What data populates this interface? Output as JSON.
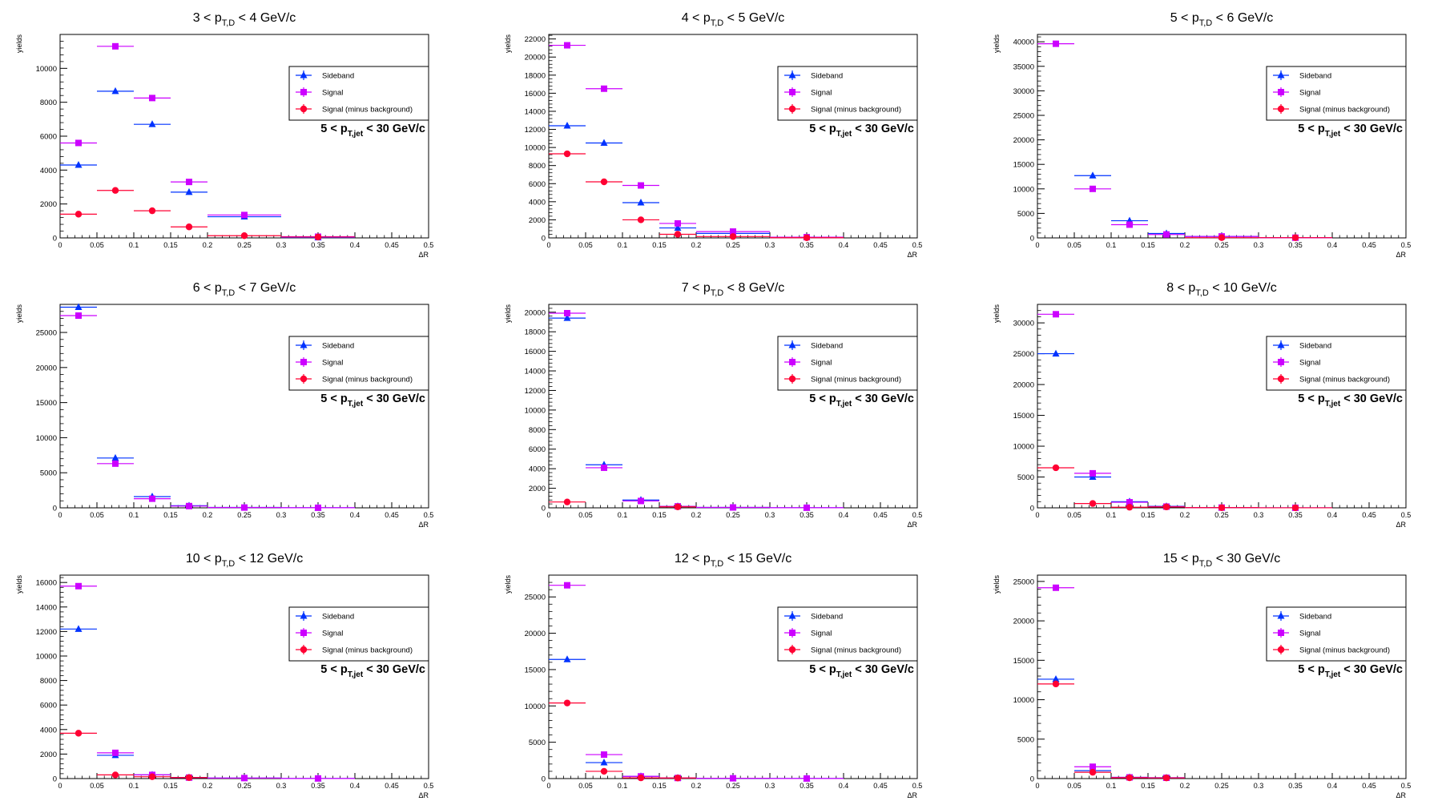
{
  "x_axis_label": "ΔR",
  "y_axis_label": "yields",
  "legend": {
    "sideband": "Sideband",
    "signal": "Signal",
    "signal_minus_bkg": "Signal (minus background)"
  },
  "jet_label_main": "5 < p",
  "jet_label_sub": "T,jet",
  "jet_label_tail": " < 30 GeV/c",
  "colors": {
    "sideband": "#0033ff",
    "signal": "#cc00ff",
    "signal_minus_bkg": "#ff0033"
  },
  "chart_data": [
    {
      "type": "scatter",
      "title_main": "3 < p",
      "title_sub": "T,D",
      "title_tail": " < 4 GeV/c",
      "xlim": [
        0,
        0.5
      ],
      "ylim": [
        0,
        12000
      ],
      "yticks": [
        0,
        2000,
        4000,
        6000,
        8000,
        10000
      ],
      "ytick_labels": [
        "0",
        "2000",
        "4000",
        "6000",
        "8000",
        "10000"
      ],
      "bins": [
        [
          0,
          0.05
        ],
        [
          0.05,
          0.1
        ],
        [
          0.1,
          0.15
        ],
        [
          0.15,
          0.2
        ],
        [
          0.2,
          0.3
        ],
        [
          0.3,
          0.4
        ]
      ],
      "series": [
        {
          "key": "sideband",
          "values": [
            4300,
            8650,
            6700,
            2700,
            1250,
            20
          ]
        },
        {
          "key": "signal",
          "values": [
            5600,
            11300,
            8250,
            3300,
            1350,
            70
          ]
        },
        {
          "key": "signal_minus_bkg",
          "values": [
            1400,
            2800,
            1600,
            650,
            130,
            50
          ]
        }
      ]
    },
    {
      "type": "scatter",
      "title_main": "4 < p",
      "title_sub": "T,D",
      "title_tail": " < 5 GeV/c",
      "xlim": [
        0,
        0.5
      ],
      "ylim": [
        0,
        22500
      ],
      "yticks": [
        0,
        2000,
        4000,
        6000,
        8000,
        10000,
        12000,
        14000,
        16000,
        18000,
        20000,
        22000
      ],
      "ytick_labels": [
        "0",
        "2000",
        "4000",
        "6000",
        "8000",
        "10000",
        "12000",
        "14000",
        "16000",
        "18000",
        "20000",
        "22000"
      ],
      "bins": [
        [
          0,
          0.05
        ],
        [
          0.05,
          0.1
        ],
        [
          0.1,
          0.15
        ],
        [
          0.15,
          0.2
        ],
        [
          0.2,
          0.3
        ],
        [
          0.3,
          0.4
        ]
      ],
      "series": [
        {
          "key": "sideband",
          "values": [
            12400,
            10500,
            3900,
            1100,
            500,
            60
          ]
        },
        {
          "key": "signal",
          "values": [
            21300,
            16500,
            5800,
            1600,
            700,
            80
          ]
        },
        {
          "key": "signal_minus_bkg",
          "values": [
            9300,
            6200,
            2000,
            400,
            150,
            20
          ]
        }
      ]
    },
    {
      "type": "scatter",
      "title_main": "5 < p",
      "title_sub": "T,D",
      "title_tail": " < 6 GeV/c",
      "xlim": [
        0,
        0.5
      ],
      "ylim": [
        0,
        41500
      ],
      "yticks": [
        0,
        5000,
        10000,
        15000,
        20000,
        25000,
        30000,
        35000,
        40000
      ],
      "ytick_labels": [
        "0",
        "5000",
        "10000",
        "15000",
        "20000",
        "25000",
        "30000",
        "35000",
        "40000"
      ],
      "bins": [
        [
          0,
          0.05
        ],
        [
          0.05,
          0.1
        ],
        [
          0.1,
          0.15
        ],
        [
          0.15,
          0.2
        ],
        [
          0.2,
          0.3
        ],
        [
          0.3,
          0.4
        ]
      ],
      "series": [
        {
          "key": "sideband",
          "values": [
            null,
            12700,
            3500,
            900,
            300,
            40
          ]
        },
        {
          "key": "signal",
          "values": [
            39600,
            10000,
            2700,
            700,
            300,
            40
          ]
        },
        {
          "key": "signal_minus_bkg",
          "values": [
            null,
            null,
            null,
            null,
            50,
            50
          ]
        }
      ]
    },
    {
      "type": "scatter",
      "title_main": "6 < p",
      "title_sub": "T,D",
      "title_tail": " < 7 GeV/c",
      "xlim": [
        0,
        0.5
      ],
      "ylim": [
        0,
        29000
      ],
      "yticks": [
        0,
        5000,
        10000,
        15000,
        20000,
        25000
      ],
      "ytick_labels": [
        "0",
        "5000",
        "10000",
        "15000",
        "20000",
        "25000"
      ],
      "bins": [
        [
          0,
          0.05
        ],
        [
          0.05,
          0.1
        ],
        [
          0.1,
          0.15
        ],
        [
          0.15,
          0.2
        ],
        [
          0.2,
          0.3
        ],
        [
          0.3,
          0.4
        ]
      ],
      "series": [
        {
          "key": "sideband",
          "values": [
            28600,
            7100,
            1600,
            300,
            60,
            10
          ]
        },
        {
          "key": "signal",
          "values": [
            27400,
            6300,
            1300,
            250,
            40,
            10
          ]
        },
        {
          "key": "signal_minus_bkg",
          "values": [
            null,
            null,
            null,
            null,
            null,
            null
          ]
        }
      ]
    },
    {
      "type": "scatter",
      "title_main": "7 < p",
      "title_sub": "T,D",
      "title_tail": " < 8 GeV/c",
      "xlim": [
        0,
        0.5
      ],
      "ylim": [
        0,
        20800
      ],
      "yticks": [
        0,
        2000,
        4000,
        6000,
        8000,
        10000,
        12000,
        14000,
        16000,
        18000,
        20000
      ],
      "ytick_labels": [
        "0",
        "2000",
        "4000",
        "6000",
        "8000",
        "10000",
        "12000",
        "14000",
        "16000",
        "18000",
        "20000"
      ],
      "bins": [
        [
          0,
          0.05
        ],
        [
          0.05,
          0.1
        ],
        [
          0.1,
          0.15
        ],
        [
          0.15,
          0.2
        ],
        [
          0.2,
          0.3
        ],
        [
          0.3,
          0.4
        ]
      ],
      "series": [
        {
          "key": "sideband",
          "values": [
            19400,
            4400,
            800,
            150,
            40,
            10
          ]
        },
        {
          "key": "signal",
          "values": [
            19900,
            4100,
            700,
            150,
            40,
            10
          ]
        },
        {
          "key": "signal_minus_bkg",
          "values": [
            600,
            null,
            null,
            100,
            null,
            null
          ]
        }
      ]
    },
    {
      "type": "scatter",
      "title_main": "8 < p",
      "title_sub": "T,D",
      "title_tail": " < 10 GeV/c",
      "xlim": [
        0,
        0.5
      ],
      "ylim": [
        0,
        33000
      ],
      "yticks": [
        0,
        5000,
        10000,
        15000,
        20000,
        25000,
        30000
      ],
      "ytick_labels": [
        "0",
        "5000",
        "10000",
        "15000",
        "20000",
        "25000",
        "30000"
      ],
      "bins": [
        [
          0,
          0.05
        ],
        [
          0.05,
          0.1
        ],
        [
          0.1,
          0.15
        ],
        [
          0.15,
          0.2
        ],
        [
          0.2,
          0.3
        ],
        [
          0.3,
          0.4
        ]
      ],
      "series": [
        {
          "key": "sideband",
          "values": [
            25000,
            5000,
            1000,
            250,
            40,
            10
          ]
        },
        {
          "key": "signal",
          "values": [
            31400,
            5600,
            900,
            200,
            40,
            10
          ]
        },
        {
          "key": "signal_minus_bkg",
          "values": [
            6500,
            700,
            100,
            150,
            30,
            10
          ]
        }
      ]
    },
    {
      "type": "scatter",
      "title_main": "10 < p",
      "title_sub": "T,D",
      "title_tail": " < 12 GeV/c",
      "xlim": [
        0,
        0.5
      ],
      "ylim": [
        0,
        16600
      ],
      "yticks": [
        0,
        2000,
        4000,
        6000,
        8000,
        10000,
        12000,
        14000,
        16000
      ],
      "ytick_labels": [
        "0",
        "2000",
        "4000",
        "6000",
        "8000",
        "10000",
        "12000",
        "14000",
        "16000"
      ],
      "bins": [
        [
          0,
          0.05
        ],
        [
          0.05,
          0.1
        ],
        [
          0.1,
          0.15
        ],
        [
          0.15,
          0.2
        ],
        [
          0.2,
          0.3
        ],
        [
          0.3,
          0.4
        ]
      ],
      "series": [
        {
          "key": "sideband",
          "values": [
            12200,
            1900,
            300,
            80,
            40,
            10
          ]
        },
        {
          "key": "signal",
          "values": [
            15700,
            2100,
            300,
            80,
            40,
            10
          ]
        },
        {
          "key": "signal_minus_bkg",
          "values": [
            3700,
            300,
            150,
            80,
            null,
            null
          ]
        }
      ]
    },
    {
      "type": "scatter",
      "title_main": "12 < p",
      "title_sub": "T,D",
      "title_tail": " < 15 GeV/c",
      "xlim": [
        0,
        0.5
      ],
      "ylim": [
        0,
        28000
      ],
      "yticks": [
        0,
        5000,
        10000,
        15000,
        20000,
        25000
      ],
      "ytick_labels": [
        "0",
        "5000",
        "10000",
        "15000",
        "20000",
        "25000"
      ],
      "bins": [
        [
          0,
          0.05
        ],
        [
          0.05,
          0.1
        ],
        [
          0.1,
          0.15
        ],
        [
          0.15,
          0.2
        ],
        [
          0.2,
          0.3
        ],
        [
          0.3,
          0.4
        ]
      ],
      "series": [
        {
          "key": "sideband",
          "values": [
            16400,
            2200,
            300,
            80,
            40,
            10
          ]
        },
        {
          "key": "signal",
          "values": [
            26600,
            3300,
            300,
            80,
            40,
            10
          ]
        },
        {
          "key": "signal_minus_bkg",
          "values": [
            10400,
            1000,
            100,
            80,
            null,
            null
          ]
        }
      ]
    },
    {
      "type": "scatter",
      "title_main": "15 < p",
      "title_sub": "T,D",
      "title_tail": " < 30 GeV/c",
      "xlim": [
        0,
        0.5
      ],
      "ylim": [
        0,
        25800
      ],
      "yticks": [
        0,
        5000,
        10000,
        15000,
        20000,
        25000
      ],
      "ytick_labels": [
        "0",
        "5000",
        "10000",
        "15000",
        "20000",
        "25000"
      ],
      "bins": [
        [
          0,
          0.05
        ],
        [
          0.05,
          0.1
        ],
        [
          0.1,
          0.15
        ],
        [
          0.15,
          0.2
        ],
        [
          0.2,
          0.3
        ],
        [
          0.3,
          0.4
        ]
      ],
      "series": [
        {
          "key": "sideband",
          "values": [
            12600,
            1000,
            150,
            100,
            null,
            null
          ]
        },
        {
          "key": "signal",
          "values": [
            24200,
            1500,
            150,
            100,
            null,
            null
          ]
        },
        {
          "key": "signal_minus_bkg",
          "values": [
            12000,
            800,
            100,
            80,
            null,
            null
          ]
        }
      ]
    }
  ],
  "x_ticks": [
    0,
    0.05,
    0.1,
    0.15,
    0.2,
    0.25,
    0.3,
    0.35,
    0.4,
    0.45,
    0.5
  ],
  "x_tick_labels": [
    "0",
    "0.05",
    "0.1",
    "0.15",
    "0.2",
    "0.25",
    "0.3",
    "0.35",
    "0.4",
    "0.45",
    "0.5"
  ]
}
